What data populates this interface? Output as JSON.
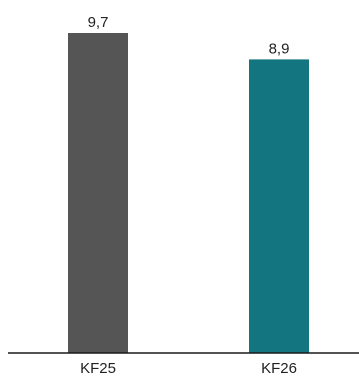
{
  "chart_data": {
    "type": "bar",
    "categories": [
      "KF25",
      "KF26"
    ],
    "values": [
      9.7,
      8.9
    ],
    "value_labels": [
      "9,7",
      "8,9"
    ],
    "colors": [
      "#555555",
      "#137580"
    ],
    "ylim": [
      0,
      9.7
    ],
    "grid": false,
    "legend": "none",
    "title": "",
    "xlabel": "",
    "ylabel": ""
  }
}
